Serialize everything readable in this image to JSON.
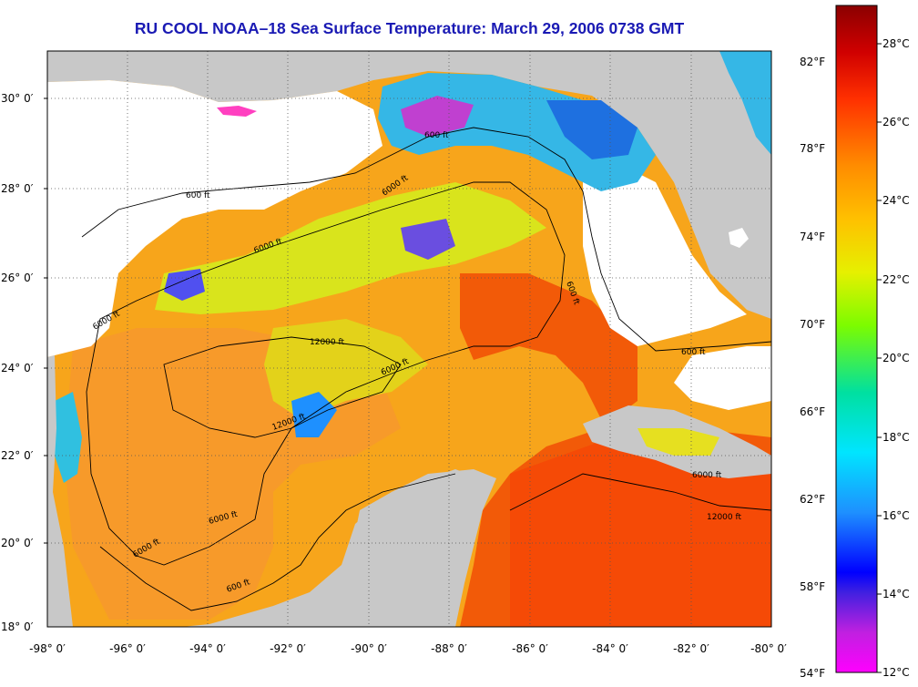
{
  "title": "RU COOL  NOAA–18  Sea Surface Temperature:  March 29, 2006 0738 GMT",
  "lat_labels": [
    "30° 0′",
    "28° 0′",
    "26° 0′",
    "24° 0′",
    "22° 0′",
    "20° 0′",
    "18° 0′"
  ],
  "lon_labels": [
    "-98° 0′",
    "-96° 0′",
    "-94° 0′",
    "-92° 0′",
    "-90° 0′",
    "-88° 0′",
    "-86° 0′",
    "-84° 0′",
    "-82° 0′",
    "-80° 0′"
  ],
  "fahrenheit_labels": [
    "82°F",
    "78°F",
    "74°F",
    "70°F",
    "66°F",
    "62°F",
    "58°F",
    "54°F"
  ],
  "celsius_labels": [
    "28°C",
    "26°C",
    "24°C",
    "22°C",
    "20°C",
    "18°C",
    "16°C",
    "14°C",
    "12°C"
  ],
  "contour_labels": [
    "600 ft",
    "600 ft",
    "600 ft",
    "6000 ft",
    "6000 ft",
    "6000 ft",
    "12000 ft",
    "6000 ft",
    "600 ft",
    "600 ft",
    "6000 ft",
    "6000 ft",
    "12000 ft",
    "6000 ft",
    "12000 ft"
  ],
  "colors": {
    "land": "#c8c8c8",
    "cloud": "#ffffff",
    "title": "#1a1ab4",
    "sst_warm": "#f25a08",
    "sst_mid": "#f7a51b",
    "sst_cool": "#d9e41c"
  },
  "colorbar": {
    "min_c": 12,
    "max_c": 29,
    "stops": [
      "#ff00ff",
      "#8a2be2",
      "#0000ff",
      "#1e90ff",
      "#00e5ff",
      "#00e0a0",
      "#7cfc00",
      "#e6f000",
      "#ffd000",
      "#ff8c00",
      "#ff3000",
      "#d00000",
      "#8b0000"
    ]
  }
}
